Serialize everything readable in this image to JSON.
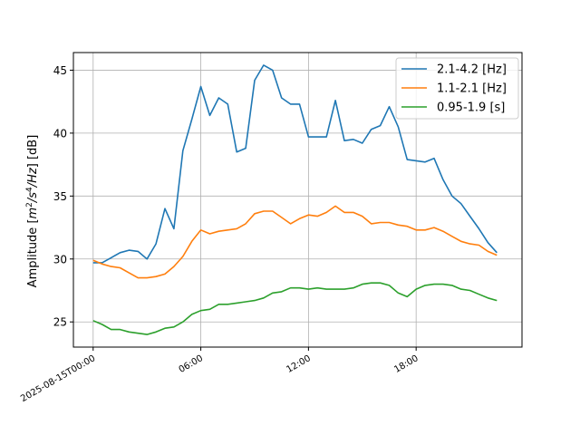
{
  "chart_data": {
    "type": "line",
    "title": "",
    "xlabel": "",
    "ylabel_parts": {
      "prefix": "Amplitude [",
      "m": "m",
      "m_exp": "2",
      "s": "/s",
      "s_exp": "4",
      "hz": "/Hz",
      "suffix": "] [dB]"
    },
    "x_hours": [
      0,
      0.5,
      1,
      1.5,
      2,
      2.5,
      3,
      3.5,
      4,
      4.5,
      5,
      5.5,
      6,
      6.5,
      7,
      7.5,
      8,
      8.5,
      9,
      9.5,
      10,
      10.5,
      11,
      11.5,
      12,
      12.5,
      13,
      13.5,
      14,
      14.5,
      15,
      15.5,
      16,
      16.5,
      17,
      17.5,
      18,
      18.5,
      19,
      19.5,
      20,
      20.5,
      21,
      21.5,
      22,
      22.5
    ],
    "xlim": [
      -1.1,
      23.9
    ],
    "ylim": [
      23,
      46.4
    ],
    "xticks": [
      {
        "value": 0,
        "label": "2025-08-15T00:00"
      },
      {
        "value": 6,
        "label": "06:00"
      },
      {
        "value": 12,
        "label": "12:00"
      },
      {
        "value": 18,
        "label": "18:00"
      }
    ],
    "yticks": [
      {
        "value": 25,
        "label": "25"
      },
      {
        "value": 30,
        "label": "30"
      },
      {
        "value": 35,
        "label": "35"
      },
      {
        "value": 40,
        "label": "40"
      },
      {
        "value": 45,
        "label": "45"
      }
    ],
    "grid": true,
    "legend_position": "top-right",
    "series": [
      {
        "name": "2.1-4.2 [Hz]",
        "color": "#1f77b4",
        "values": [
          29.7,
          29.7,
          30.1,
          30.5,
          30.7,
          30.6,
          30.0,
          31.2,
          34.0,
          32.4,
          38.6,
          41.1,
          43.7,
          41.4,
          42.8,
          42.3,
          38.5,
          38.8,
          44.2,
          45.4,
          45.0,
          42.8,
          42.3,
          42.3,
          39.7,
          39.7,
          39.7,
          42.6,
          39.4,
          39.5,
          39.2,
          40.3,
          40.6,
          42.1,
          40.5,
          37.9,
          37.8,
          37.7,
          38.0,
          36.3,
          35.0,
          34.4,
          33.4,
          32.4,
          31.3,
          30.5
        ]
      },
      {
        "name": "1.1-2.1 [Hz]",
        "color": "#ff7f0e",
        "values": [
          29.9,
          29.6,
          29.4,
          29.3,
          28.9,
          28.5,
          28.5,
          28.6,
          28.8,
          29.4,
          30.2,
          31.4,
          32.3,
          32.0,
          32.2,
          32.3,
          32.4,
          32.8,
          33.6,
          33.8,
          33.8,
          33.3,
          32.8,
          33.2,
          33.5,
          33.4,
          33.7,
          34.2,
          33.7,
          33.7,
          33.4,
          32.8,
          32.9,
          32.9,
          32.7,
          32.6,
          32.3,
          32.3,
          32.5,
          32.2,
          31.8,
          31.4,
          31.2,
          31.1,
          30.6,
          30.3
        ]
      },
      {
        "name": "0.95-1.9 [s]",
        "color": "#2ca02c",
        "values": [
          25.1,
          24.8,
          24.4,
          24.4,
          24.2,
          24.1,
          24.0,
          24.2,
          24.5,
          24.6,
          25.0,
          25.6,
          25.9,
          26.0,
          26.4,
          26.4,
          26.5,
          26.6,
          26.7,
          26.9,
          27.3,
          27.4,
          27.7,
          27.7,
          27.6,
          27.7,
          27.6,
          27.6,
          27.6,
          27.7,
          28.0,
          28.1,
          28.1,
          27.9,
          27.3,
          27.0,
          27.6,
          27.9,
          28.0,
          28.0,
          27.9,
          27.6,
          27.5,
          27.2,
          26.9,
          26.7
        ]
      }
    ]
  }
}
